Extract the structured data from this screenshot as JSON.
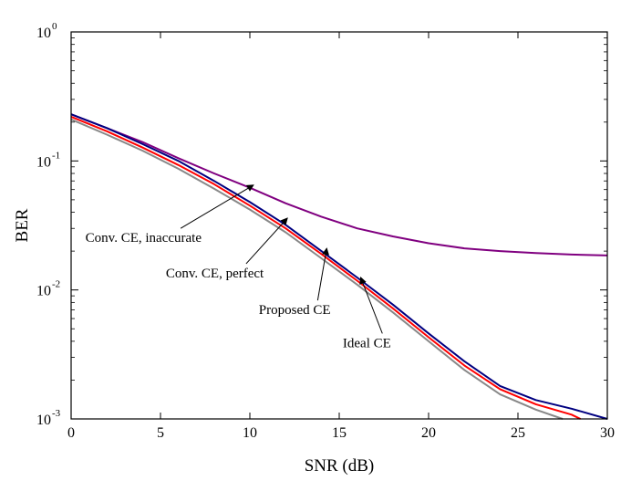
{
  "chart_data": {
    "type": "line",
    "title": "",
    "xlabel": "SNR (dB)",
    "ylabel": "BER",
    "xlim": [
      0,
      30
    ],
    "ylim": [
      0.001,
      1
    ],
    "yscale": "log",
    "grid": false,
    "x_ticks": [
      0,
      5,
      10,
      15,
      20,
      25,
      30
    ],
    "x_tick_labels": [
      "0",
      "5",
      "10",
      "15",
      "20",
      "25",
      "30"
    ],
    "y_ticks": [
      {
        "value": 1,
        "base": "10",
        "exp": "0"
      },
      {
        "value": 0.1,
        "base": "10",
        "exp": "-1"
      },
      {
        "value": 0.01,
        "base": "10",
        "exp": "-2"
      },
      {
        "value": 0.001,
        "base": "10",
        "exp": "-3"
      }
    ],
    "series": [
      {
        "color": "#800080",
        "x": [
          0,
          2,
          4,
          6,
          8,
          10,
          12,
          14,
          16,
          18,
          20,
          22,
          24,
          26,
          28,
          30
        ],
        "values": [
          0.23,
          0.18,
          0.14,
          0.105,
          0.08,
          0.062,
          0.047,
          0.037,
          0.03,
          0.026,
          0.023,
          0.021,
          0.02,
          0.0193,
          0.0188,
          0.0185
        ]
      },
      {
        "color": "#000080",
        "x": [
          0,
          2,
          4,
          6,
          8,
          10,
          12,
          14,
          16,
          18,
          20,
          22,
          24,
          26,
          28,
          30
        ],
        "values": [
          0.23,
          0.18,
          0.135,
          0.1,
          0.07,
          0.048,
          0.032,
          0.02,
          0.0125,
          0.0077,
          0.0046,
          0.0028,
          0.0018,
          0.0014,
          0.0012,
          0.001
        ]
      },
      {
        "color": "#ff0000",
        "x": [
          0,
          2,
          4,
          6,
          8,
          10,
          12,
          14,
          16,
          18,
          20,
          22,
          24,
          26,
          28,
          28.5
        ],
        "values": [
          0.22,
          0.17,
          0.127,
          0.093,
          0.066,
          0.045,
          0.03,
          0.019,
          0.0118,
          0.0072,
          0.0043,
          0.0026,
          0.0017,
          0.0013,
          0.00108,
          0.001
        ]
      },
      {
        "color": "#888888",
        "x": [
          0,
          2,
          4,
          6,
          8,
          10,
          12,
          14,
          16,
          18,
          20,
          22,
          24,
          26,
          27.5
        ],
        "values": [
          0.21,
          0.16,
          0.12,
          0.087,
          0.061,
          0.042,
          0.028,
          0.0176,
          0.011,
          0.0067,
          0.004,
          0.0024,
          0.00155,
          0.00118,
          0.001
        ]
      }
    ],
    "annotations": [
      {
        "text": "Conv. CE, inaccurate",
        "x": 0.8,
        "y": 0.0235,
        "arrow_to": [
          10.2,
          0.065
        ]
      },
      {
        "text": "Conv. CE, perfect",
        "x": 5.3,
        "y": 0.0125,
        "arrow_to": [
          12.1,
          0.036
        ]
      },
      {
        "text": "Proposed CE",
        "x": 10.5,
        "y": 0.0065,
        "arrow_to": [
          14.3,
          0.021
        ]
      },
      {
        "text": "Ideal CE",
        "x": 15.2,
        "y": 0.0036,
        "arrow_to": [
          16.2,
          0.0125
        ]
      }
    ]
  }
}
